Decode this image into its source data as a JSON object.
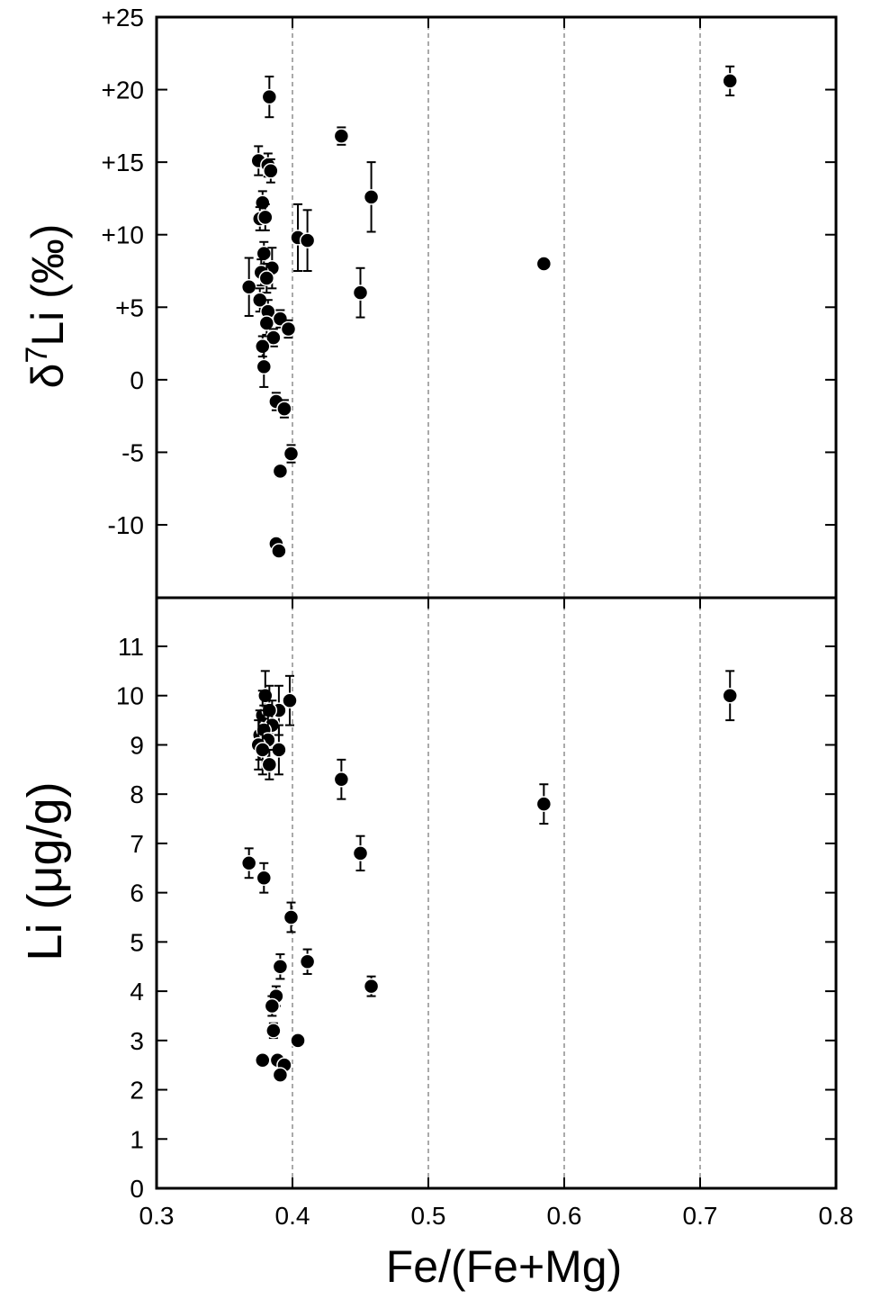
{
  "chart_data": [
    {
      "type": "scatter",
      "ylabel": "δ7Li (‰)",
      "ylabel_main": "δ",
      "ylabel_sup": "7",
      "ylabel_rest": "Li (‰)",
      "xlim": [
        0.3,
        0.8
      ],
      "ylim": [
        -15,
        25
      ],
      "yticks": [
        {
          "value": 25,
          "label": "+25"
        },
        {
          "value": 20,
          "label": "+20"
        },
        {
          "value": 15,
          "label": "+15"
        },
        {
          "value": 10,
          "label": "+10"
        },
        {
          "value": 5,
          "label": "+5"
        },
        {
          "value": 0,
          "label": "0"
        },
        {
          "value": -5,
          "label": "-5"
        },
        {
          "value": -10,
          "label": "-10"
        }
      ],
      "vlines": [
        0.4,
        0.5,
        0.6,
        0.7
      ],
      "points": [
        {
          "x": 0.383,
          "y": 19.5,
          "err": 1.4
        },
        {
          "x": 0.375,
          "y": 15.1,
          "err": 1.0
        },
        {
          "x": 0.382,
          "y": 14.8,
          "err": 0.8
        },
        {
          "x": 0.384,
          "y": 14.4,
          "err": 0.8
        },
        {
          "x": 0.378,
          "y": 12.2,
          "err": 0.8
        },
        {
          "x": 0.376,
          "y": 11.1,
          "err": 0.8
        },
        {
          "x": 0.38,
          "y": 11.2,
          "err": 0.9
        },
        {
          "x": 0.404,
          "y": 9.8,
          "err": 2.3
        },
        {
          "x": 0.411,
          "y": 9.6,
          "err": 2.1
        },
        {
          "x": 0.379,
          "y": 8.7,
          "err": 0.8
        },
        {
          "x": 0.385,
          "y": 7.7,
          "err": 1.4
        },
        {
          "x": 0.377,
          "y": 7.4,
          "err": 0.9
        },
        {
          "x": 0.381,
          "y": 7.0,
          "err": 1.0
        },
        {
          "x": 0.368,
          "y": 6.4,
          "err": 2.0
        },
        {
          "x": 0.376,
          "y": 5.5,
          "err": 0.8
        },
        {
          "x": 0.382,
          "y": 4.7,
          "err": 0.8
        },
        {
          "x": 0.391,
          "y": 4.2,
          "err": 0.6
        },
        {
          "x": 0.381,
          "y": 3.9,
          "err": 0.8
        },
        {
          "x": 0.397,
          "y": 3.5,
          "err": 0.6
        },
        {
          "x": 0.386,
          "y": 2.9,
          "err": 0.6
        },
        {
          "x": 0.378,
          "y": 2.3,
          "err": 0.7
        },
        {
          "x": 0.379,
          "y": 0.9,
          "err": 1.4
        },
        {
          "x": 0.388,
          "y": -1.5,
          "err": 0.6
        },
        {
          "x": 0.394,
          "y": -2.0,
          "err": 0.6
        },
        {
          "x": 0.399,
          "y": -5.1,
          "err": 0.6
        },
        {
          "x": 0.391,
          "y": -6.3,
          "err": 0.4
        },
        {
          "x": 0.388,
          "y": -11.3,
          "err": 0.4
        },
        {
          "x": 0.39,
          "y": -11.8,
          "err": 0.4
        },
        {
          "x": 0.436,
          "y": 16.8,
          "err": 0.6
        },
        {
          "x": 0.458,
          "y": 12.6,
          "err": 2.4
        },
        {
          "x": 0.45,
          "y": 6.0,
          "err": 1.7
        },
        {
          "x": 0.585,
          "y": 8.0,
          "err": 0
        },
        {
          "x": 0.722,
          "y": 20.6,
          "err": 1.0
        }
      ]
    },
    {
      "type": "scatter",
      "ylabel": "Li (μg/g)",
      "xlabel": "Fe/(Fe+Mg)",
      "xlim": [
        0.3,
        0.8
      ],
      "ylim": [
        0,
        12
      ],
      "xticks": [
        {
          "value": 0.3,
          "label": "0.3"
        },
        {
          "value": 0.4,
          "label": "0.4"
        },
        {
          "value": 0.5,
          "label": "0.5"
        },
        {
          "value": 0.6,
          "label": "0.6"
        },
        {
          "value": 0.7,
          "label": "0.7"
        },
        {
          "value": 0.8,
          "label": "0.8"
        }
      ],
      "yticks": [
        {
          "value": 0,
          "label": "0"
        },
        {
          "value": 1,
          "label": "1"
        },
        {
          "value": 2,
          "label": "2"
        },
        {
          "value": 3,
          "label": "3"
        },
        {
          "value": 4,
          "label": "4"
        },
        {
          "value": 5,
          "label": "5"
        },
        {
          "value": 6,
          "label": "6"
        },
        {
          "value": 7,
          "label": "7"
        },
        {
          "value": 8,
          "label": "8"
        },
        {
          "value": 9,
          "label": "9"
        },
        {
          "value": 10,
          "label": "10"
        },
        {
          "value": 11,
          "label": "11"
        }
      ],
      "vlines": [
        0.4,
        0.5,
        0.6,
        0.7
      ],
      "points": [
        {
          "x": 0.38,
          "y": 10.0,
          "err": 0.5
        },
        {
          "x": 0.398,
          "y": 9.9,
          "err": 0.5
        },
        {
          "x": 0.39,
          "y": 9.7,
          "err": 0.5
        },
        {
          "x": 0.378,
          "y": 9.6,
          "err": 0.5
        },
        {
          "x": 0.383,
          "y": 9.7,
          "err": 0.5
        },
        {
          "x": 0.385,
          "y": 9.4,
          "err": 0.5
        },
        {
          "x": 0.376,
          "y": 9.2,
          "err": 0.5
        },
        {
          "x": 0.379,
          "y": 9.3,
          "err": 0.5
        },
        {
          "x": 0.382,
          "y": 9.1,
          "err": 0.5
        },
        {
          "x": 0.375,
          "y": 9.0,
          "err": 0.5
        },
        {
          "x": 0.378,
          "y": 8.9,
          "err": 0.5
        },
        {
          "x": 0.39,
          "y": 8.9,
          "err": 0.5
        },
        {
          "x": 0.383,
          "y": 8.6,
          "err": 0.3
        },
        {
          "x": 0.436,
          "y": 8.3,
          "err": 0.4
        },
        {
          "x": 0.585,
          "y": 7.8,
          "err": 0.4
        },
        {
          "x": 0.45,
          "y": 6.8,
          "err": 0.35
        },
        {
          "x": 0.368,
          "y": 6.6,
          "err": 0.3
        },
        {
          "x": 0.379,
          "y": 6.3,
          "err": 0.3
        },
        {
          "x": 0.399,
          "y": 5.5,
          "err": 0.3
        },
        {
          "x": 0.411,
          "y": 4.6,
          "err": 0.25
        },
        {
          "x": 0.391,
          "y": 4.5,
          "err": 0.25
        },
        {
          "x": 0.458,
          "y": 4.1,
          "err": 0.2
        },
        {
          "x": 0.388,
          "y": 3.9,
          "err": 0.2
        },
        {
          "x": 0.385,
          "y": 3.7,
          "err": 0.2
        },
        {
          "x": 0.386,
          "y": 3.2,
          "err": 0.15
        },
        {
          "x": 0.404,
          "y": 3.0,
          "err": 0.1
        },
        {
          "x": 0.378,
          "y": 2.6,
          "err": 0.1
        },
        {
          "x": 0.389,
          "y": 2.6,
          "err": 0.1
        },
        {
          "x": 0.394,
          "y": 2.5,
          "err": 0.1
        },
        {
          "x": 0.391,
          "y": 2.3,
          "err": 0.1
        },
        {
          "x": 0.722,
          "y": 10.0,
          "err": 0.5
        }
      ]
    }
  ],
  "colors": {
    "marker": "#000000",
    "marker_outline": "#ffffff",
    "axis": "#000000",
    "gridline": "#555555"
  }
}
